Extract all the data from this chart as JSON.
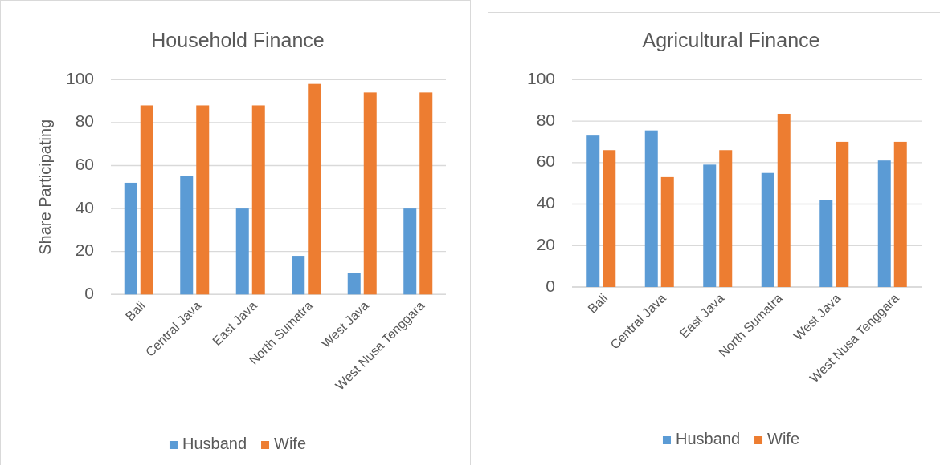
{
  "chart_data": [
    {
      "type": "bar",
      "title": "Household Finance",
      "ylabel": "Share Participating",
      "categories": [
        "Bali",
        "Central Java",
        "East Java",
        "North Sumatra",
        "West Java",
        "West Nusa Tenggara"
      ],
      "series": [
        {
          "name": "Husband",
          "color": "#5b9bd5",
          "values": [
            52,
            55,
            40,
            18,
            10,
            40
          ]
        },
        {
          "name": "Wife",
          "color": "#ed7d31",
          "values": [
            88,
            88,
            88,
            98,
            94,
            94
          ]
        }
      ],
      "ylim": [
        0,
        100
      ],
      "yticks": [
        0,
        20,
        40,
        60,
        80,
        100
      ],
      "grid": "y",
      "legend": "bottom"
    },
    {
      "type": "bar",
      "title": "Agricultural Finance",
      "categories": [
        "Bali",
        "Central Java",
        "East Java",
        "North Sumatra",
        "West Java",
        "West Nusa Tenggara"
      ],
      "series": [
        {
          "name": "Husband",
          "color": "#5b9bd5",
          "values": [
            73,
            75.5,
            59,
            55,
            42,
            61
          ]
        },
        {
          "name": "Wife",
          "color": "#ed7d31",
          "values": [
            66,
            53,
            66,
            83.5,
            70,
            70
          ]
        }
      ],
      "ylim": [
        0,
        100
      ],
      "yticks": [
        0,
        20,
        40,
        60,
        80,
        100
      ],
      "grid": "y",
      "legend": "bottom"
    }
  ]
}
